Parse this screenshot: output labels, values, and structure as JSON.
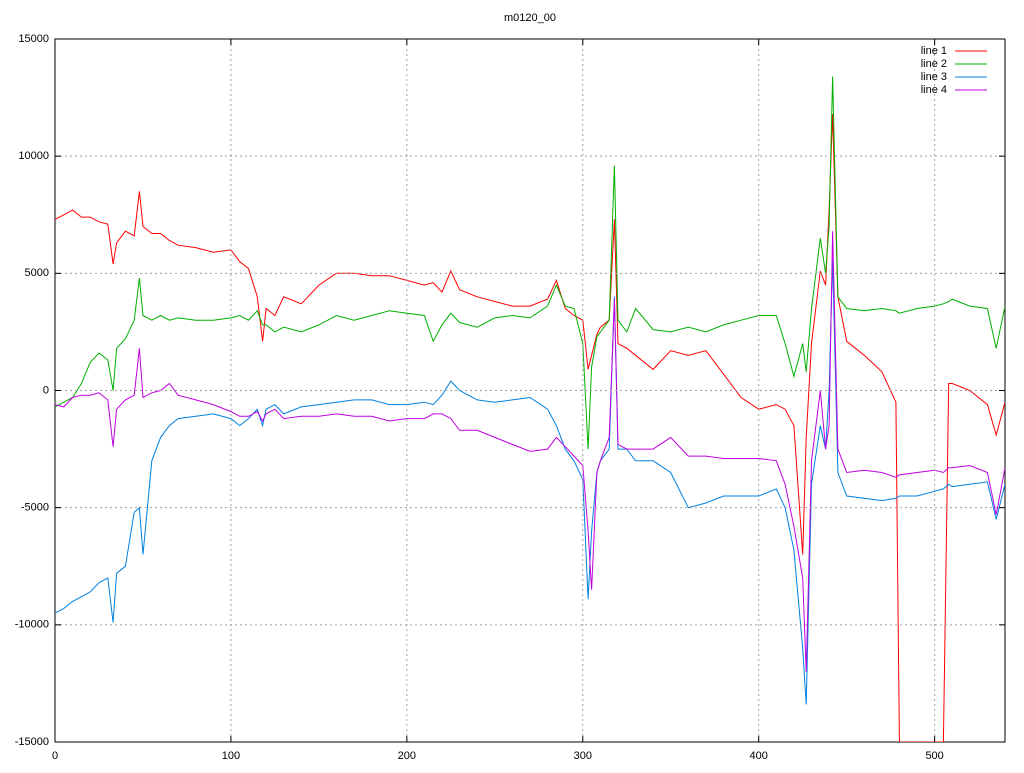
{
  "chart_data": {
    "type": "line",
    "title": "m0120_00",
    "x": [
      0,
      5,
      10,
      15,
      20,
      25,
      30,
      33,
      35,
      40,
      45,
      48,
      50,
      55,
      60,
      65,
      70,
      80,
      90,
      100,
      105,
      110,
      115,
      118,
      120,
      125,
      130,
      140,
      150,
      160,
      170,
      180,
      190,
      200,
      210,
      215,
      220,
      225,
      230,
      240,
      250,
      260,
      270,
      280,
      285,
      290,
      295,
      300,
      303,
      305,
      308,
      310,
      315,
      318,
      320,
      325,
      330,
      340,
      350,
      360,
      370,
      380,
      390,
      400,
      410,
      415,
      420,
      425,
      427,
      430,
      435,
      438,
      440,
      442,
      445,
      450,
      460,
      470,
      478,
      480,
      490,
      500,
      505,
      508,
      510,
      520,
      530,
      535,
      540
    ],
    "series": [
      {
        "name": "line 1",
        "color": "#ff0000",
        "values": [
          7300,
          7500,
          7700,
          7400,
          7400,
          7200,
          7100,
          5400,
          6300,
          6800,
          6600,
          8500,
          7000,
          6700,
          6700,
          6400,
          6200,
          6100,
          5900,
          6000,
          5500,
          5200,
          4000,
          2100,
          3500,
          3200,
          4000,
          3700,
          4500,
          5000,
          5000,
          4900,
          4900,
          4700,
          4500,
          4600,
          4200,
          5100,
          4300,
          4000,
          3800,
          3600,
          3600,
          3900,
          4700,
          3500,
          3200,
          3000,
          900,
          1500,
          2400,
          2700,
          3000,
          7300,
          2000,
          1800,
          1500,
          900,
          1700,
          1500,
          1700,
          700,
          -300,
          -800,
          -600,
          -800,
          -1500,
          -7000,
          -2000,
          2000,
          5100,
          4500,
          7700,
          11800,
          4000,
          2100,
          1500,
          800,
          -500,
          -15000,
          -15000,
          -15000,
          -15000,
          300,
          300,
          0,
          -600,
          -1900,
          -500
        ]
      },
      {
        "name": "line 2",
        "color": "#00b000",
        "values": [
          -700,
          -500,
          -300,
          300,
          1200,
          1600,
          1300,
          0,
          1800,
          2200,
          3000,
          4800,
          3200,
          3000,
          3200,
          3000,
          3100,
          3000,
          3000,
          3100,
          3200,
          3000,
          3400,
          2800,
          2800,
          2500,
          2700,
          2500,
          2800,
          3200,
          3000,
          3200,
          3400,
          3300,
          3200,
          2100,
          2800,
          3300,
          2900,
          2700,
          3100,
          3200,
          3100,
          3600,
          4500,
          3600,
          3500,
          2000,
          -2500,
          1000,
          2300,
          2500,
          3000,
          9600,
          3000,
          2500,
          3500,
          2600,
          2500,
          2700,
          2500,
          2800,
          3000,
          3200,
          3200,
          2000,
          600,
          2000,
          800,
          3500,
          6500,
          5000,
          7000,
          13400,
          4000,
          3500,
          3400,
          3500,
          3400,
          3300,
          3500,
          3600,
          3700,
          3800,
          3900,
          3600,
          3500,
          1800,
          3600
        ]
      },
      {
        "name": "line 3",
        "color": "#0080e0",
        "values": [
          -9500,
          -9300,
          -9000,
          -8800,
          -8600,
          -8200,
          -8000,
          -9900,
          -7800,
          -7500,
          -5200,
          -5000,
          -7000,
          -3000,
          -2000,
          -1500,
          -1200,
          -1100,
          -1000,
          -1200,
          -1500,
          -1200,
          -800,
          -1500,
          -800,
          -600,
          -1000,
          -700,
          -600,
          -500,
          -400,
          -400,
          -600,
          -600,
          -500,
          -600,
          -200,
          400,
          0,
          -400,
          -500,
          -400,
          -300,
          -800,
          -1500,
          -2500,
          -3000,
          -3800,
          -8900,
          -6000,
          -3500,
          -3000,
          -2500,
          4000,
          -2500,
          -2500,
          -3000,
          -3000,
          -3500,
          -5000,
          -4800,
          -4500,
          -4500,
          -4500,
          -4200,
          -5000,
          -6800,
          -11000,
          -13400,
          -4000,
          -1500,
          -2500,
          0,
          5600,
          -3500,
          -4500,
          -4600,
          -4700,
          -4600,
          -4500,
          -4500,
          -4300,
          -4200,
          -4000,
          -4100,
          -4000,
          -3900,
          -5500,
          -4000
        ]
      },
      {
        "name": "line 4",
        "color": "#c000e0",
        "values": [
          -600,
          -700,
          -300,
          -200,
          -200,
          -100,
          -400,
          -2400,
          -800,
          -400,
          -200,
          1800,
          -300,
          -100,
          0,
          300,
          -200,
          -400,
          -600,
          -900,
          -1100,
          -1100,
          -900,
          -1300,
          -1000,
          -800,
          -1200,
          -1100,
          -1100,
          -1000,
          -1100,
          -1100,
          -1300,
          -1200,
          -1200,
          -1000,
          -1000,
          -1200,
          -1700,
          -1700,
          -2000,
          -2300,
          -2600,
          -2500,
          -2000,
          -2400,
          -2800,
          -3200,
          -6000,
          -8500,
          -3500,
          -3000,
          -2000,
          3900,
          -2300,
          -2500,
          -2500,
          -2500,
          -2000,
          -2800,
          -2800,
          -2900,
          -2900,
          -2900,
          -3000,
          -4000,
          -5800,
          -8000,
          -12000,
          -3000,
          0,
          -2500,
          -1500,
          6800,
          -2500,
          -3500,
          -3400,
          -3500,
          -3700,
          -3600,
          -3500,
          -3400,
          -3500,
          -3300,
          -3300,
          -3200,
          -3500,
          -5300,
          -3300
        ]
      }
    ],
    "xlim": [
      0,
      540
    ],
    "xticks": [
      0,
      100,
      200,
      300,
      400,
      500
    ],
    "ylim": [
      -15000,
      15000
    ],
    "yticks": [
      -15000,
      -10000,
      -5000,
      0,
      5000,
      10000,
      15000
    ],
    "grid": true,
    "legend": "top-right"
  }
}
